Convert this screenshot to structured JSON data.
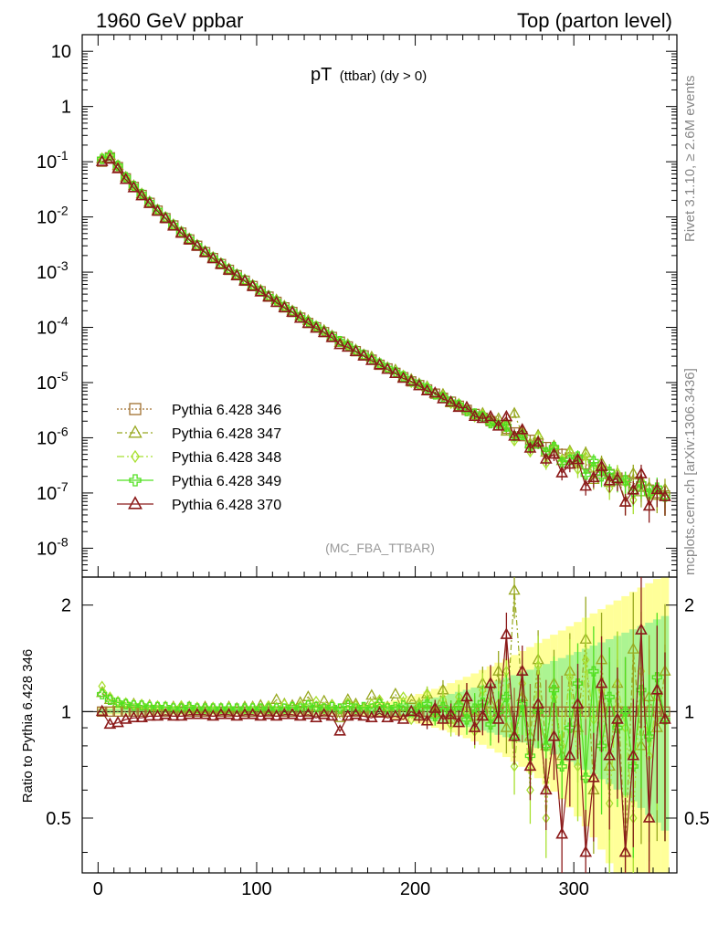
{
  "header": {
    "left": "1960 GeV ppbar",
    "right": "Top (parton level)"
  },
  "plot_title": {
    "main": "pT",
    "sub": "(ttbar) (dy > 0)"
  },
  "analysis_label": "(MC_FBA_TTBAR)",
  "side_labels": {
    "rivet": "Rivet 3.1.10, ≥ 2.6M events",
    "mcplots": "mcplots.cern.ch [arXiv:1306.3436]"
  },
  "chart_data": [
    {
      "type": "scatter",
      "yscale": "log",
      "xlim": [
        -10,
        365
      ],
      "ylim": [
        3e-09,
        20
      ],
      "y_tick_labels": [
        "10",
        "1",
        "10^-1",
        "10^-2",
        "10^-3",
        "10^-4",
        "10^-5",
        "10^-6",
        "10^-7",
        "10^-8"
      ],
      "legend_position": "lower-left",
      "x": [
        2.5,
        7.5,
        12.5,
        17.5,
        22.5,
        27.5,
        32.5,
        37.5,
        42.5,
        47.5,
        52.5,
        57.5,
        62.5,
        67.5,
        72.5,
        77.5,
        82.5,
        87.5,
        92.5,
        97.5,
        102.5,
        107.5,
        112.5,
        117.5,
        122.5,
        127.5,
        132.5,
        137.5,
        142.5,
        147.5,
        152.5,
        157.5,
        162.5,
        167.5,
        172.5,
        177.5,
        182.5,
        187.5,
        192.5,
        197.5,
        202.5,
        207.5,
        212.5,
        217.5,
        222.5,
        227.5,
        232.5,
        237.5,
        242.5,
        247.5,
        252.5,
        257.5,
        262.5,
        267.5,
        272.5,
        277.5,
        282.5,
        287.5,
        292.5,
        297.5,
        302.5,
        307.5,
        312.5,
        317.5,
        322.5,
        327.5,
        332.5,
        337.5,
        342.5,
        347.5,
        352.5,
        357.5
      ],
      "reference_y": [
        0.1,
        0.12,
        0.08,
        0.05,
        0.035,
        0.025,
        0.018,
        0.013,
        0.0095,
        0.007,
        0.0052,
        0.0039,
        0.003,
        0.0023,
        0.0018,
        0.0014,
        0.0011,
        0.00088,
        0.0007,
        0.00056,
        0.00045,
        0.00036,
        0.00029,
        0.00023,
        0.00019,
        0.00015,
        0.00012,
        0.0001,
        8.2e-05,
        6.7e-05,
        5.5e-05,
        4.5e-05,
        3.7e-05,
        3.1e-05,
        2.6e-05,
        2.1e-05,
        1.8e-05,
        1.5e-05,
        1.25e-05,
        1.05e-05,
        9e-06,
        7.5e-06,
        6.3e-06,
        5.3e-06,
        4.5e-06,
        3.8e-06,
        3.2e-06,
        2.7e-06,
        2.3e-06,
        2e-06,
        1.7e-06,
        1.45e-06,
        1.25e-06,
        1.07e-06,
        9.2e-07,
        7.9e-07,
        6.8e-07,
        5.9e-07,
        5.1e-07,
        4.4e-07,
        3.8e-07,
        3.3e-07,
        2.9e-07,
        2.5e-07,
        2.2e-07,
        1.9e-07,
        1.7e-07,
        1.5e-07,
        1.3e-07,
        1.15e-07,
        1e-07,
        9e-08
      ],
      "series": [
        {
          "name": "Pythia 6.428 346",
          "color": "#a07030",
          "marker": "square",
          "dash": "2,2",
          "ratio": [
            1.0,
            1.0,
            1.0,
            1.0,
            1.0,
            1.0,
            1.0,
            1.0,
            1.0,
            1.0,
            1.0,
            1.0,
            1.0,
            1.0,
            1.0,
            1.0,
            1.0,
            1.0,
            1.0,
            1.0,
            1.0,
            1.0,
            1.0,
            1.0,
            1.0,
            1.0,
            1.0,
            1.0,
            1.0,
            1.0,
            1.0,
            1.0,
            1.0,
            1.0,
            1.0,
            1.0,
            1.0,
            1.0,
            1.0,
            1.0,
            1.0,
            1.0,
            1.0,
            1.0,
            1.0,
            1.0,
            1.0,
            1.0,
            1.0,
            1.0,
            1.0,
            1.0,
            1.0,
            1.0,
            1.0,
            1.0,
            1.0,
            1.0,
            1.0,
            1.0,
            1.0,
            1.0,
            1.0,
            1.0,
            1.0,
            1.0,
            1.0,
            1.0,
            1.0,
            1.0,
            1.0,
            1.0
          ]
        },
        {
          "name": "Pythia 6.428 347",
          "color": "#98a820",
          "marker": "triangle",
          "dash": "6,3,2,3",
          "ratio": [
            1.13,
            1.08,
            1.06,
            1.05,
            1.05,
            1.04,
            1.04,
            1.03,
            1.03,
            1.03,
            1.02,
            1.03,
            1.02,
            1.03,
            1.02,
            1.02,
            1.03,
            1.02,
            1.03,
            1.03,
            1.04,
            1.02,
            1.08,
            1.05,
            1.04,
            1.06,
            1.1,
            1.03,
            1.07,
            1.04,
            0.96,
            1.08,
            1.05,
            1.02,
            1.11,
            1.06,
            1.03,
            1.12,
            1.0,
            1.08,
            1.05,
            1.12,
            1.0,
            1.15,
            0.95,
            1.06,
            1.1,
            0.97,
            1.2,
            1.05,
            1.3,
            0.9,
            2.2,
            1.1,
            0.85,
            1.4,
            0.8,
            1.2,
            0.75,
            1.3,
            0.9,
            1.6,
            0.6,
            1.4,
            0.7,
            1.2,
            0.4,
            1.5,
            0.8,
            1.1,
            0.9,
            1.3
          ]
        },
        {
          "name": "Pythia 6.428 348",
          "color": "#a8e030",
          "marker": "diamond",
          "dash": "8,3,2,3,2,3",
          "ratio": [
            1.18,
            1.1,
            1.07,
            1.06,
            1.05,
            1.05,
            1.04,
            1.04,
            1.03,
            1.03,
            1.04,
            1.02,
            1.03,
            1.02,
            1.03,
            1.02,
            1.03,
            1.02,
            1.02,
            1.03,
            1.02,
            1.04,
            1.03,
            1.05,
            1.03,
            1.04,
            1.05,
            1.07,
            1.03,
            1.05,
            1.02,
            1.06,
            1.04,
            1.02,
            1.05,
            1.08,
            1.03,
            1.02,
            1.1,
            0.95,
            1.05,
            1.12,
            0.98,
            1.08,
            0.92,
            1.1,
            1.0,
            0.88,
            1.15,
            0.95,
            1.05,
            1.3,
            0.7,
            1.2,
            0.6,
            1.35,
            0.5,
            1.1,
            0.8,
            1.25,
            0.7,
            1.4,
            0.95,
            1.15,
            0.55,
            1.2,
            0.9,
            0.5,
            1.3,
            0.75,
            1.1,
            0.95
          ]
        },
        {
          "name": "Pythia 6.428 349",
          "color": "#50e020",
          "marker": "cross",
          "dash": "",
          "ratio": [
            1.12,
            1.08,
            1.06,
            1.05,
            1.04,
            1.04,
            1.03,
            1.03,
            1.03,
            1.02,
            1.02,
            1.03,
            1.02,
            1.02,
            1.02,
            1.02,
            1.02,
            1.02,
            1.02,
            1.02,
            1.02,
            1.02,
            1.02,
            1.02,
            1.03,
            1.02,
            1.04,
            1.03,
            1.02,
            1.03,
            1.02,
            1.04,
            1.02,
            1.03,
            1.02,
            1.05,
            1.02,
            1.03,
            1.04,
            1.0,
            1.02,
            1.05,
            0.97,
            1.03,
            1.0,
            1.04,
            0.95,
            1.02,
            1.06,
            0.92,
            1.0,
            1.1,
            0.85,
            1.05,
            0.75,
            1.0,
            0.8,
            1.15,
            0.7,
            0.9,
            1.2,
            0.65,
            1.3,
            0.8,
            1.1,
            0.9,
            1.0,
            0.7,
            1.15,
            0.85,
            1.25,
            0.95
          ]
        },
        {
          "name": "Pythia 6.428 370",
          "color": "#8b1a1a",
          "marker": "triangle-open",
          "dash": "",
          "ratio": [
            1.0,
            0.92,
            0.93,
            0.95,
            0.96,
            0.96,
            0.97,
            0.97,
            0.98,
            0.97,
            0.97,
            0.98,
            0.98,
            0.98,
            0.97,
            0.98,
            0.98,
            0.97,
            0.98,
            0.98,
            0.97,
            0.98,
            0.97,
            0.98,
            0.98,
            0.97,
            0.98,
            0.96,
            0.98,
            0.97,
            0.88,
            0.97,
            0.98,
            0.97,
            0.96,
            0.99,
            0.96,
            0.97,
            0.95,
            1.0,
            0.97,
            0.94,
            1.02,
            0.95,
            0.98,
            0.93,
            1.1,
            0.9,
            0.97,
            1.2,
            0.95,
            1.65,
            0.85,
            1.3,
            0.7,
            1.05,
            0.6,
            0.85,
            0.45,
            0.75,
            1.05,
            0.4,
            0.65,
            1.2,
            0.75,
            0.95,
            0.4,
            0.75,
            1.7,
            0.5,
            1.15,
            0.95
          ]
        }
      ]
    },
    {
      "type": "scatter",
      "x_tick_labels": [
        "0",
        "100",
        "200",
        "300"
      ],
      "ylabel": "Ratio to Pythia 6.428 346",
      "y_tick_labels": [
        "0.5",
        "1",
        "2"
      ],
      "ylim": [
        0.35,
        2.4
      ],
      "xlim": [
        -10,
        365
      ]
    }
  ]
}
